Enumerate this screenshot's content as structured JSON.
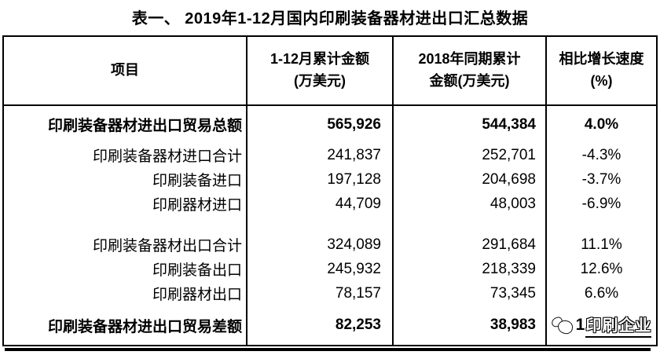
{
  "title": "表一、 2019年1-12月国内印刷装备器材进出口汇总数据",
  "header": {
    "col_item": "项目",
    "col_2019_line1": "1-12月累计金额",
    "col_2019_line2": "(万美元)",
    "col_2018_line1": "2018年同期累计",
    "col_2018_line2": "金额(万美元)",
    "col_growth_line1": "相比增长速度",
    "col_growth_line2": "(%)"
  },
  "rows": [
    {
      "label": "印刷装备器材进出口贸易总额",
      "amt2019": "565,926",
      "amt2018": "544,384",
      "growth": "4.0%"
    },
    {
      "label": "印刷装备器材进口合计",
      "amt2019": "241,837",
      "amt2018": "252,701",
      "growth": "-4.3%"
    },
    {
      "label": "印刷装备进口",
      "amt2019": "197,128",
      "amt2018": "204,698",
      "growth": "-3.7%"
    },
    {
      "label": "印刷器材进口",
      "amt2019": "44,709",
      "amt2018": "48,003",
      "growth": "-6.9%"
    },
    {
      "label": "印刷装备器材出口合计",
      "amt2019": "324,089",
      "amt2018": "291,684",
      "growth": "11.1%"
    },
    {
      "label": "印刷装备出口",
      "amt2019": "245,932",
      "amt2018": "218,339",
      "growth": "12.6%"
    },
    {
      "label": "印刷器材出口",
      "amt2019": "78,157",
      "amt2018": "73,345",
      "growth": "6.6%"
    },
    {
      "label": "印刷装备器材进出口贸易差额",
      "amt2019": "82,253",
      "amt2018": "38,983",
      "growth": ""
    }
  ],
  "watermark": {
    "visible_digit": "1",
    "logo_text": "印刷企业"
  },
  "chart_data": {
    "type": "table",
    "title": "表一、 2019年1-12月国内印刷装备器材进出口汇总数据",
    "columns": [
      "项目",
      "1-12月累计金额(万美元)",
      "2018年同期累计金额(万美元)",
      "相比增长速度(%)"
    ],
    "rows": [
      [
        "印刷装备器材进出口贸易总额",
        565926,
        544384,
        4.0
      ],
      [
        "印刷装备器材进口合计",
        241837,
        252701,
        -4.3
      ],
      [
        "印刷装备进口",
        197128,
        204698,
        -3.7
      ],
      [
        "印刷器材进口",
        44709,
        48003,
        -6.9
      ],
      [
        "印刷装备器材出口合计",
        324089,
        291684,
        11.1
      ],
      [
        "印刷装备出口",
        245932,
        218339,
        12.6
      ],
      [
        "印刷器材出口",
        78157,
        73345,
        6.6
      ],
      [
        "印刷装备器材进出口贸易差额",
        82253,
        38983,
        null
      ]
    ],
    "notes": "last growth cell obscured by watermark logo; visible leading digit 1"
  }
}
